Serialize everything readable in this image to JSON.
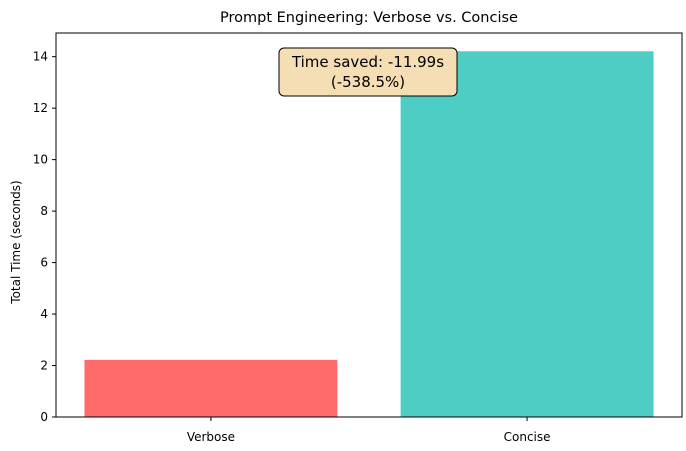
{
  "chart_data": {
    "type": "bar",
    "title": "Prompt Engineering: Verbose vs. Concise",
    "xlabel": "",
    "ylabel": "Total Time (seconds)",
    "categories": [
      "Verbose",
      "Concise"
    ],
    "values": [
      2.22,
      14.21
    ],
    "colors": [
      "#ff6b6b",
      "#4ecdc4"
    ],
    "ylim": [
      0,
      14.92
    ],
    "yticks": [
      0,
      2,
      4,
      6,
      8,
      10,
      12,
      14
    ],
    "grid": false,
    "annotation": {
      "line1": "Time saved: -11.99s",
      "line2": "(-538.5%)",
      "box_color": "#f5deb3"
    }
  }
}
